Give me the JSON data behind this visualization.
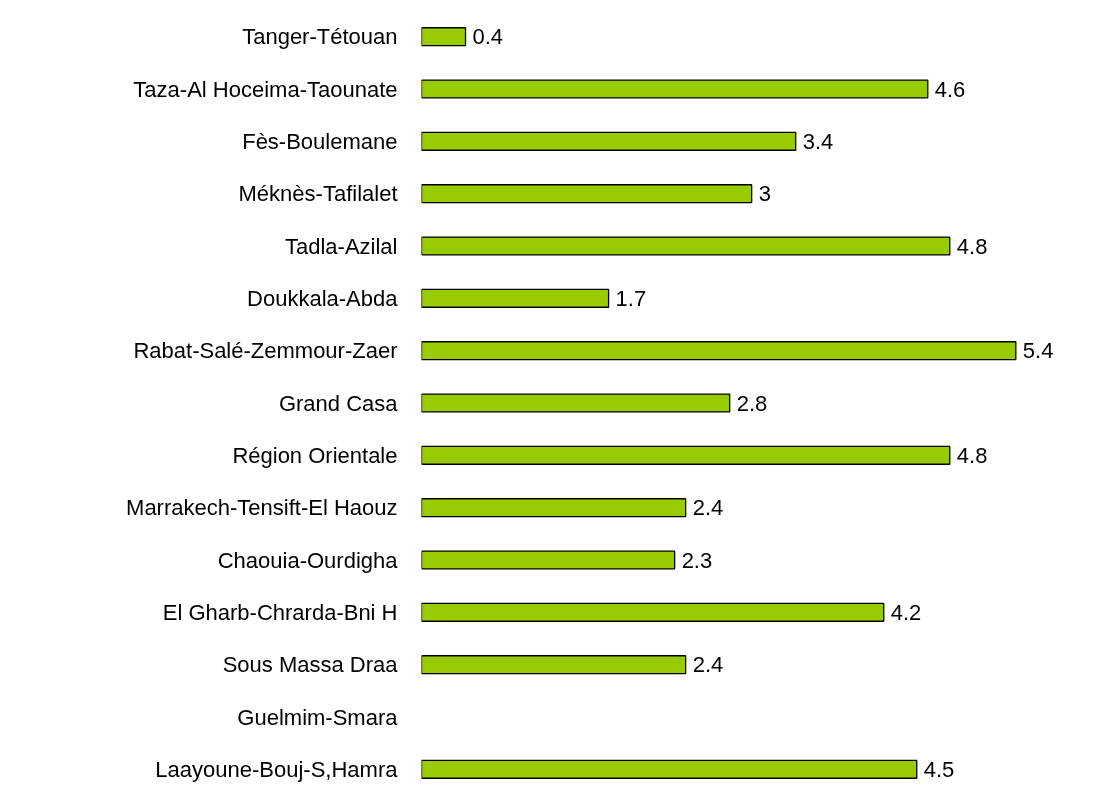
{
  "chart_data": {
    "type": "bar",
    "orientation": "horizontal",
    "categories": [
      "Tanger-Tétouan",
      "Taza-Al Hoceima-Taounate",
      "Fès-Boulemane",
      "Méknès-Tafilalet",
      "Tadla-Azilal",
      "Doukkala-Abda",
      "Rabat-Salé-Zemmour-Zaer",
      "Grand Casa",
      "Région Orientale",
      "Marrakech-Tensift-El Haouz",
      "Chaouia-Ourdigha",
      "El Gharb-Chrarda-Bni H",
      "Sous Massa Draa",
      "Guelmim-Smara",
      "Laayoune-Bouj-S,Hamra"
    ],
    "values": [
      0.4,
      4.6,
      3.4,
      3,
      4.8,
      1.7,
      5.4,
      2.8,
      4.8,
      2.4,
      2.3,
      4.2,
      2.4,
      null,
      4.5
    ],
    "color": "#99cc00",
    "data_labels": true,
    "tick_labels": "y",
    "grid": false
  }
}
